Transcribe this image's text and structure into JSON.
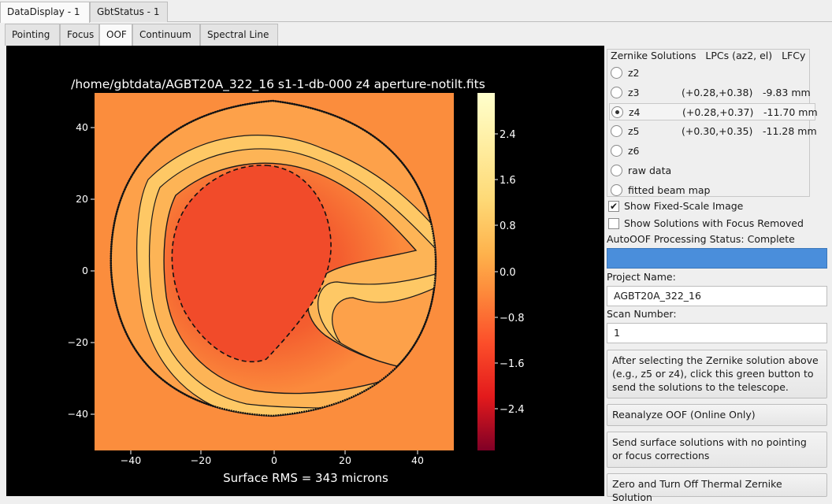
{
  "window_tabs": [
    {
      "label": "DataDisplay - 1",
      "active": true
    },
    {
      "label": "GbtStatus - 1",
      "active": false
    }
  ],
  "sub_tabs": [
    {
      "label": "Pointing",
      "active": false
    },
    {
      "label": "Focus",
      "active": false
    },
    {
      "label": "OOF",
      "active": true
    },
    {
      "label": "Continuum",
      "active": false
    },
    {
      "label": "Spectral Line",
      "active": false
    }
  ],
  "plot": {
    "title": "/home/gbtdata/AGBT20A_322_16 s1-1-db-000 z4 aperture-notilt.fits",
    "footer": "Surface RMS = 343 microns",
    "x_ticks": [
      "−40",
      "−20",
      "0",
      "20",
      "40"
    ],
    "y_ticks": [
      "40",
      "20",
      "0",
      "−20",
      "−40"
    ],
    "colorbar_ticks": [
      "2.4",
      "1.6",
      "0.8",
      "0.0",
      "−0.8",
      "−1.6",
      "−2.4"
    ],
    "colormap": "YlOrRd"
  },
  "solutions": {
    "header_zernike": "Zernike Solutions",
    "header_lpc": "LPCs (az2, el)",
    "header_lfc": "LFCy",
    "rows": [
      {
        "label": "z2",
        "lpc": "",
        "lfc": "",
        "selected": false
      },
      {
        "label": "z3",
        "lpc": "(+0.28,+0.38)",
        "lfc": "-9.83 mm",
        "selected": false
      },
      {
        "label": "z4",
        "lpc": "(+0.28,+0.37)",
        "lfc": "-11.70 mm",
        "selected": true
      },
      {
        "label": "z5",
        "lpc": "(+0.30,+0.35)",
        "lfc": "-11.28 mm",
        "selected": false
      },
      {
        "label": "z6",
        "lpc": "",
        "lfc": "",
        "selected": false
      },
      {
        "label": "raw data",
        "lpc": "",
        "lfc": "",
        "selected": false
      },
      {
        "label": "fitted beam map",
        "lpc": "",
        "lfc": "",
        "selected": false
      }
    ]
  },
  "options": {
    "fixed_scale_label": "Show Fixed-Scale Image",
    "fixed_scale_checked": true,
    "focus_removed_label": "Show Solutions with Focus Removed",
    "focus_removed_checked": false
  },
  "status": {
    "text": "AutoOOF Processing Status: Complete",
    "bar_color": "#4a8edb"
  },
  "project": {
    "label": "Project Name:",
    "value": "AGBT20A_322_16"
  },
  "scan": {
    "label": "Scan Number:",
    "value": "1"
  },
  "buttons": {
    "send_green": "After selecting the Zernike solution above\n(e.g., z5 or z4), click this green button to\nsend the solutions to the telescope.",
    "reanalyze": "Reanalyze OOF (Online Only)",
    "send_surface": "Send surface solutions with no pointing\nor focus corrections",
    "zero_thermal": "Zero and Turn Off Thermal Zernike Solution"
  }
}
